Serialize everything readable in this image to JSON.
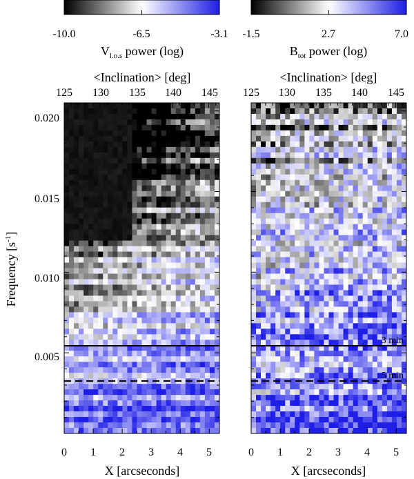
{
  "chart_data": [
    {
      "type": "heatmap",
      "colorbar": {
        "min": -10.0,
        "max": -3.1,
        "tick_labels": [
          "-10.0",
          "-6.5",
          "-3.1"
        ],
        "title_main": "V",
        "title_sub": "l.o.s",
        "title_rest": " power (log)"
      },
      "top_axis": {
        "title": "<Inclination> [deg]",
        "range": [
          125,
          146.5
        ],
        "tick_labels": [
          "125",
          "130",
          "135",
          "140",
          "145"
        ]
      },
      "x_axis": {
        "title": "X [arcseconds]",
        "range": [
          0,
          5.35
        ],
        "tick_labels": [
          "0",
          "1",
          "2",
          "3",
          "4",
          "5"
        ]
      },
      "y_axis": {
        "title_main": "Frequency [s",
        "title_sup": "-1",
        "title_end": "]",
        "range": [
          0,
          0.0205
        ],
        "tick_labels": [
          "0.005",
          "0.010",
          "0.015",
          "0.020"
        ]
      },
      "annotations": {
        "three_min_frequency": 0.00556,
        "five_min_frequency": 0.00333,
        "three_min_label": "",
        "five_min_label": ""
      }
    },
    {
      "type": "heatmap",
      "colorbar": {
        "min": -1.5,
        "max": 7.0,
        "tick_labels": [
          "-1.5",
          "2.7",
          "7.0"
        ],
        "title_main": "B",
        "title_sub": "tot",
        "title_rest": " power (log)"
      },
      "top_axis": {
        "title": "<Inclination> [deg]",
        "range": [
          125,
          146.5
        ],
        "tick_labels": [
          "125",
          "130",
          "135",
          "140",
          "145"
        ]
      },
      "x_axis": {
        "title": "X [arcseconds]",
        "range": [
          0,
          5.35
        ],
        "tick_labels": [
          "0",
          "1",
          "2",
          "3",
          "4",
          "5"
        ]
      },
      "y_axis": {
        "title_main": "",
        "title_sup": "",
        "title_end": "",
        "range": [
          0,
          0.0205
        ],
        "tick_labels": []
      },
      "annotations": {
        "three_min_frequency": 0.00556,
        "five_min_frequency": 0.00333,
        "three_min_label": "3 min",
        "five_min_label": "5 min"
      }
    }
  ]
}
